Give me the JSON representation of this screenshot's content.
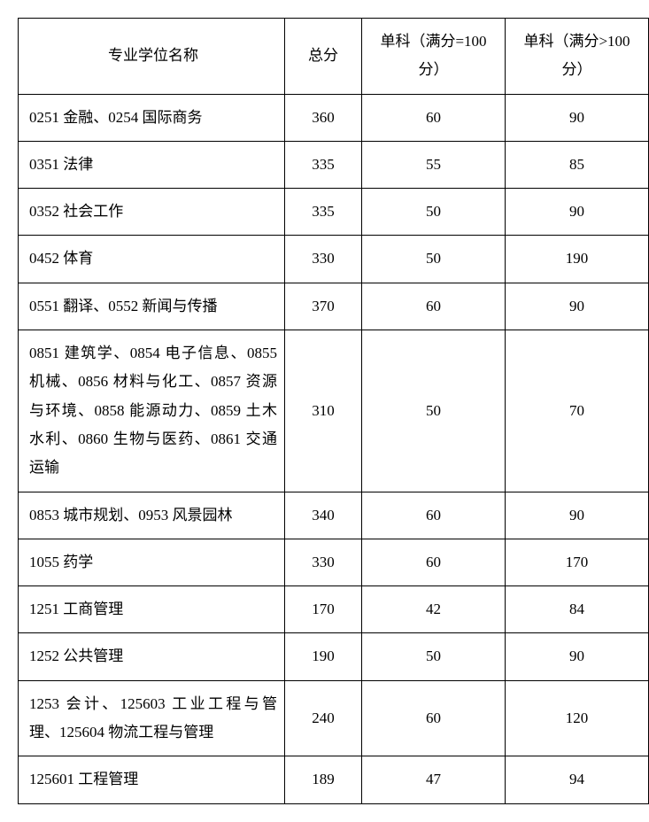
{
  "headers": {
    "name": "专业学位名称",
    "total": "总分",
    "sub1": "单科（满分=100 分）",
    "sub2": "单科（满分>100 分）"
  },
  "rows": [
    {
      "name": "0251 金融、0254 国际商务",
      "total": "360",
      "sub1": "60",
      "sub2": "90",
      "multiline": false
    },
    {
      "name": "0351 法律",
      "total": "335",
      "sub1": "55",
      "sub2": "85",
      "multiline": false
    },
    {
      "name": "0352 社会工作",
      "total": "335",
      "sub1": "50",
      "sub2": "90",
      "multiline": false
    },
    {
      "name": "0452 体育",
      "total": "330",
      "sub1": "50",
      "sub2": "190",
      "multiline": false
    },
    {
      "name": "0551 翻译、0552 新闻与传播",
      "total": "370",
      "sub1": "60",
      "sub2": "90",
      "multiline": false
    },
    {
      "name": "0851 建筑学、0854 电子信息、0855 机械、0856 材料与化工、0857 资源与环境、0858 能源动力、0859 土木水利、0860 生物与医药、0861 交通运输",
      "total": "310",
      "sub1": "50",
      "sub2": "70",
      "multiline": true
    },
    {
      "name": "0853 城市规划、0953 风景园林",
      "total": "340",
      "sub1": "60",
      "sub2": "90",
      "multiline": false
    },
    {
      "name": "1055 药学",
      "total": "330",
      "sub1": "60",
      "sub2": "170",
      "multiline": false
    },
    {
      "name": "1251 工商管理",
      "total": "170",
      "sub1": "42",
      "sub2": "84",
      "multiline": false
    },
    {
      "name": "1252 公共管理",
      "total": "190",
      "sub1": "50",
      "sub2": "90",
      "multiline": false
    },
    {
      "name": "1253 会计、125603 工业工程与管理、125604 物流工程与管理",
      "total": "240",
      "sub1": "60",
      "sub2": "120",
      "multiline": true
    },
    {
      "name": "125601 工程管理",
      "total": "189",
      "sub1": "47",
      "sub2": "94",
      "multiline": false
    }
  ]
}
